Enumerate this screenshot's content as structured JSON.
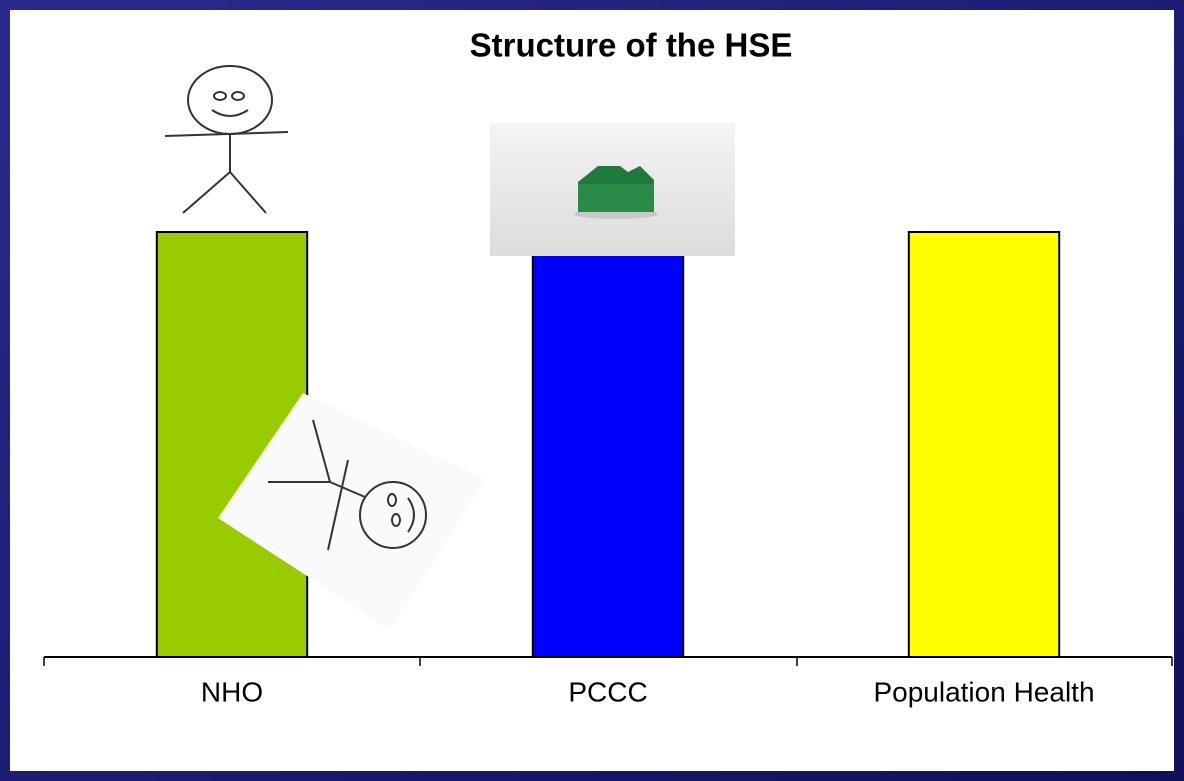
{
  "chart_data": {
    "type": "bar",
    "title": "Structure of the HSE",
    "categories": [
      "NHO",
      "PCCC",
      "Population Health"
    ],
    "values": [
      100,
      100,
      100
    ],
    "colors": [
      "#99cc00",
      "#0000ff",
      "#ffff00"
    ],
    "ylim": [
      0,
      100
    ]
  }
}
